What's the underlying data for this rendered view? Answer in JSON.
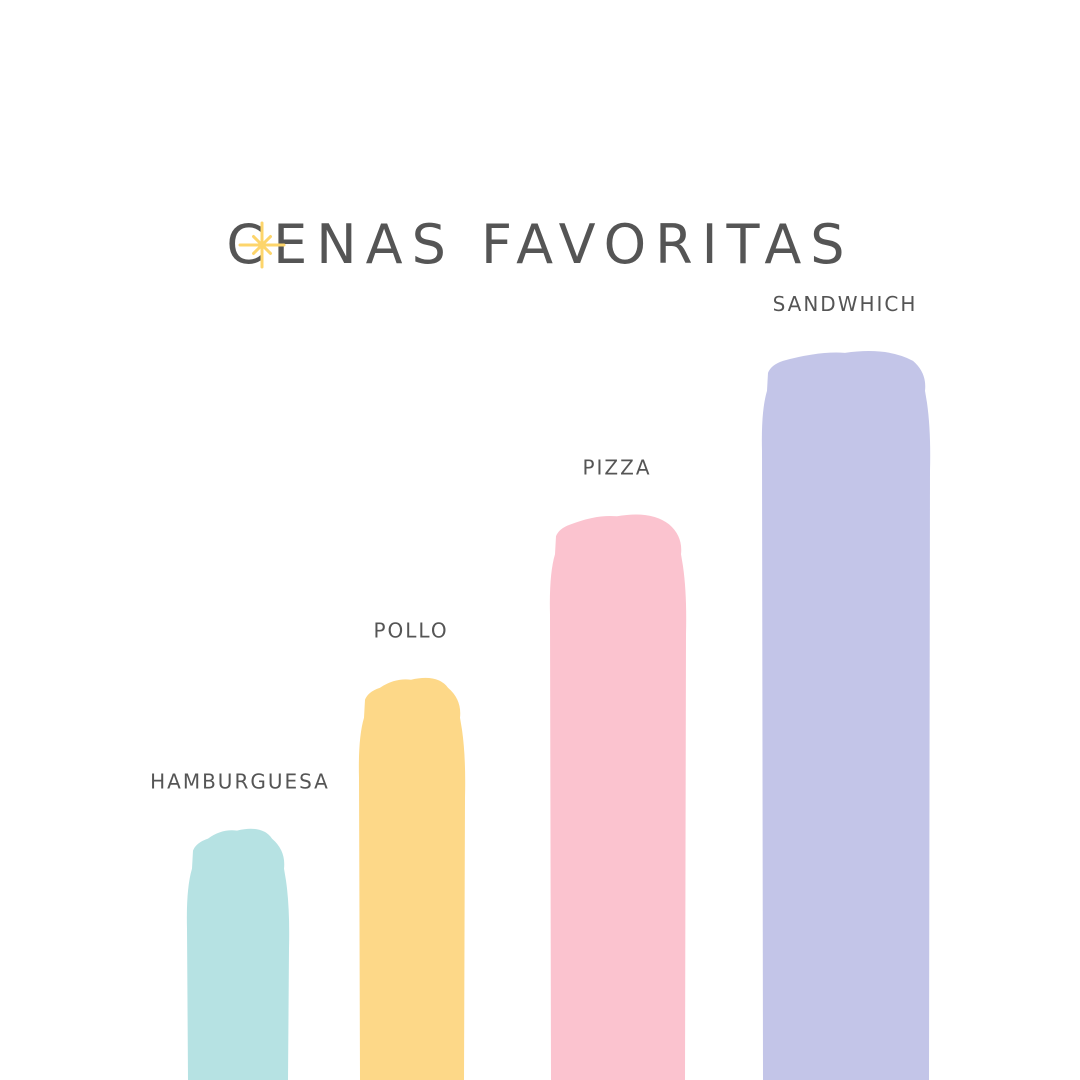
{
  "title": "CENAS FAVORITAS",
  "chart_data": {
    "type": "bar",
    "title": "CENAS FAVORITAS",
    "categories": [
      "HAMBURGUESA",
      "POLLO",
      "PIZZA",
      "SANDWHICH"
    ],
    "values": [
      2,
      3.2,
      4.5,
      5.8
    ],
    "ylim": [
      0,
      7
    ],
    "grid": false,
    "legend": "none",
    "colors": [
      "#b6e2e3",
      "#fdd888",
      "#fbc3cf",
      "#c3c5e8"
    ]
  },
  "colors": {
    "text": "#555555",
    "accent_star": "#fdd56b",
    "background": "#ffffff"
  }
}
